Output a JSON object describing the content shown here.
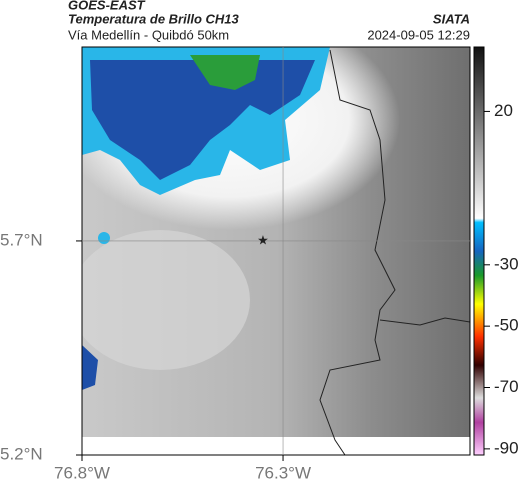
{
  "header": {
    "title": "GOES-EAST",
    "subtitle": "Temperatura de Brillo CH13",
    "route": "Vía Medellín - Quibdó 50km",
    "source": "SIATA",
    "timestamp": "2024-09-05 12:29"
  },
  "map": {
    "lonlim": [
      -76.8,
      -75.835
    ],
    "latlim": [
      5.2,
      6.153
    ],
    "lat_ticks": [
      {
        "value": 5.2,
        "label": "5.2°N"
      },
      {
        "value": 5.7,
        "label": "5.7°N"
      }
    ],
    "lon_ticks": [
      {
        "value": -76.8,
        "label": "76.8°W"
      },
      {
        "value": -76.3,
        "label": "76.3°W"
      }
    ],
    "grid": true,
    "marker": {
      "lon": -76.35,
      "lat": 5.7
    }
  },
  "colorbar": {
    "lim": [
      -92,
      41
    ],
    "ticks": [
      20,
      -30,
      -50,
      -70,
      -90
    ]
  }
}
